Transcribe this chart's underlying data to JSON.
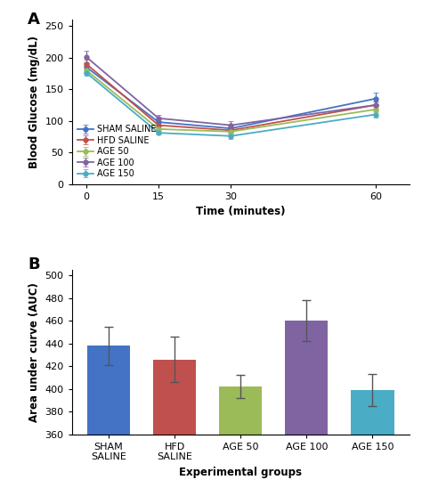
{
  "panel_A": {
    "title": "A",
    "xlabel": "Time (minutes)",
    "ylabel": "Blood Glucose (mg/dL)",
    "x": [
      0,
      15,
      30,
      60
    ],
    "series": [
      {
        "label": "SHAM SALINE",
        "color": "#4472C4",
        "values": [
          185,
          98,
          88,
          135
        ],
        "errors": [
          8,
          5,
          5,
          10
        ]
      },
      {
        "label": "HFD SALINE",
        "color": "#C0504D",
        "values": [
          190,
          93,
          85,
          125
        ],
        "errors": [
          7,
          5,
          4,
          6
        ]
      },
      {
        "label": "AGE 50",
        "color": "#9BBB59",
        "values": [
          180,
          87,
          83,
          118
        ],
        "errors": [
          6,
          4,
          4,
          5
        ]
      },
      {
        "label": "AGE 100",
        "color": "#8064A2",
        "values": [
          201,
          104,
          93,
          125
        ],
        "errors": [
          10,
          5,
          6,
          6
        ]
      },
      {
        "label": "AGE 150",
        "color": "#4BACC6",
        "values": [
          176,
          81,
          76,
          110
        ],
        "errors": [
          5,
          3,
          4,
          5
        ]
      }
    ],
    "ylim": [
      0,
      260
    ],
    "yticks": [
      0,
      50,
      100,
      150,
      200,
      250
    ]
  },
  "panel_B": {
    "title": "B",
    "xlabel": "Experimental groups",
    "ylabel": "Area under curve (AUC)",
    "categories": [
      "SHAM\nSALINE",
      "HFD\nSALINE",
      "AGE 50",
      "AGE 100",
      "AGE 150"
    ],
    "values": [
      438,
      426,
      402,
      460,
      399
    ],
    "errors": [
      17,
      20,
      10,
      18,
      14
    ],
    "colors": [
      "#4472C4",
      "#C0504D",
      "#9BBB59",
      "#8064A2",
      "#4BACC6"
    ],
    "ylim": [
      360,
      505
    ],
    "yticks": [
      360,
      380,
      400,
      420,
      440,
      460,
      480,
      500
    ]
  }
}
